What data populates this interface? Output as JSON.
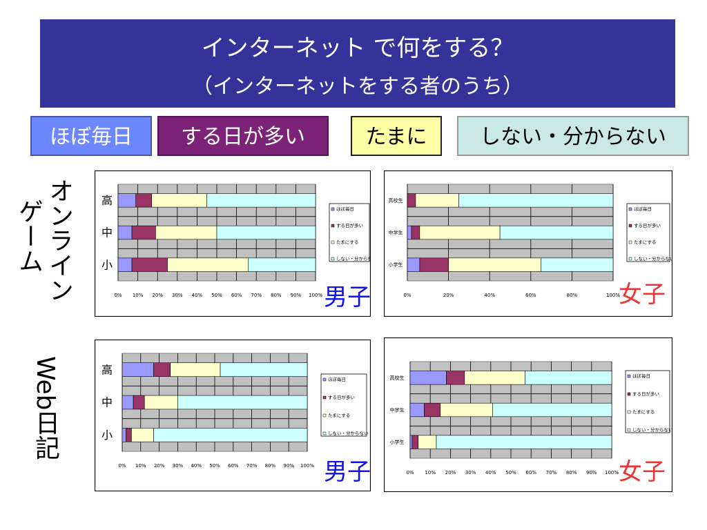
{
  "slide": {
    "title_line1": "インターネット で何をする？",
    "title_line2": "（インターネットをする者のうち）",
    "legend": [
      {
        "label": "ほぼ毎日",
        "color": "#6d88ff"
      },
      {
        "label": "する日が多い",
        "color": "#7c2277"
      },
      {
        "label": "たまに",
        "color": "#ffffa6"
      },
      {
        "label": "しない・分からない",
        "color": "#c9e8e6"
      }
    ],
    "row_labels": {
      "online_game_col1": "オンライン",
      "online_game_col2": "ゲーム",
      "web_diary": "Web日記"
    },
    "gender": {
      "male": "男子",
      "female": "女子"
    }
  },
  "colors": {
    "daily": "#9999ff",
    "often": "#993366",
    "sometimes": "#ffffcc",
    "never": "#ccffff",
    "plot_bg": "#c0c0c0"
  },
  "chart_data": [
    {
      "type": "bar",
      "orientation": "horizontal-stacked-100",
      "categories": [
        "高",
        "中",
        "小"
      ],
      "legend_labels": [
        "ほぼ毎日",
        "する日が多い",
        "たまにする",
        "しない・分からない"
      ],
      "x_ticks": [
        "0%",
        "10%",
        "20%",
        "30%",
        "40%",
        "50%",
        "60%",
        "70%",
        "80%",
        "90%",
        "100%"
      ],
      "series": [
        {
          "name": "ほぼ毎日",
          "values": [
            9,
            7,
            7
          ]
        },
        {
          "name": "する日が多い",
          "values": [
            8,
            12,
            18
          ]
        },
        {
          "name": "たまにする",
          "values": [
            28,
            31,
            41
          ]
        },
        {
          "name": "しない・分からない",
          "values": [
            55,
            50,
            34
          ]
        }
      ],
      "xlim": [
        0,
        100
      ]
    },
    {
      "type": "bar",
      "orientation": "horizontal-stacked-100",
      "categories": [
        "高校生",
        "中学生",
        "小学生"
      ],
      "legend_labels": [
        "ほぼ毎日",
        "する日が多い",
        "たまにする",
        "しない・分からない"
      ],
      "x_ticks": [
        "0%",
        "20%",
        "40%",
        "60%",
        "80%",
        "100%"
      ],
      "series": [
        {
          "name": "ほぼ毎日",
          "values": [
            0,
            2,
            6
          ]
        },
        {
          "name": "する日が多い",
          "values": [
            4,
            4,
            14
          ]
        },
        {
          "name": "たまにする",
          "values": [
            21,
            39,
            45
          ]
        },
        {
          "name": "しない・分からない",
          "values": [
            75,
            55,
            35
          ]
        }
      ],
      "xlim": [
        0,
        100
      ]
    },
    {
      "type": "bar",
      "orientation": "horizontal-stacked-100",
      "categories": [
        "高",
        "中",
        "小"
      ],
      "legend_labels": [
        "ほぼ毎日",
        "する日が多い",
        "たまにする",
        "しない・分からない"
      ],
      "x_ticks": [
        "0%",
        "10%",
        "20%",
        "30%",
        "40%",
        "50%",
        "60%",
        "70%",
        "80%",
        "90%",
        "100%"
      ],
      "series": [
        {
          "name": "ほぼ毎日",
          "values": [
            17,
            6,
            2
          ]
        },
        {
          "name": "する日が多い",
          "values": [
            9,
            6,
            3
          ]
        },
        {
          "name": "たまにする",
          "values": [
            27,
            18,
            12
          ]
        },
        {
          "name": "しない・分からない",
          "values": [
            47,
            70,
            83
          ]
        }
      ],
      "xlim": [
        0,
        100
      ]
    },
    {
      "type": "bar",
      "orientation": "horizontal-stacked-100",
      "categories": [
        "高校生",
        "中学生",
        "小学生"
      ],
      "legend_labels": [
        "ほぼ毎日",
        "する日が多い",
        "たまにする",
        "しない・分からない"
      ],
      "x_ticks": [
        "0%",
        "10%",
        "20%",
        "30%",
        "40%",
        "50%",
        "60%",
        "70%",
        "80%",
        "90%",
        "100%"
      ],
      "series": [
        {
          "name": "ほぼ毎日",
          "values": [
            18,
            7,
            1
          ]
        },
        {
          "name": "する日が多い",
          "values": [
            9,
            8,
            3
          ]
        },
        {
          "name": "たまにする",
          "values": [
            30,
            26,
            9
          ]
        },
        {
          "name": "しない・分からない",
          "values": [
            43,
            59,
            87
          ]
        }
      ],
      "xlim": [
        0,
        100
      ]
    }
  ]
}
